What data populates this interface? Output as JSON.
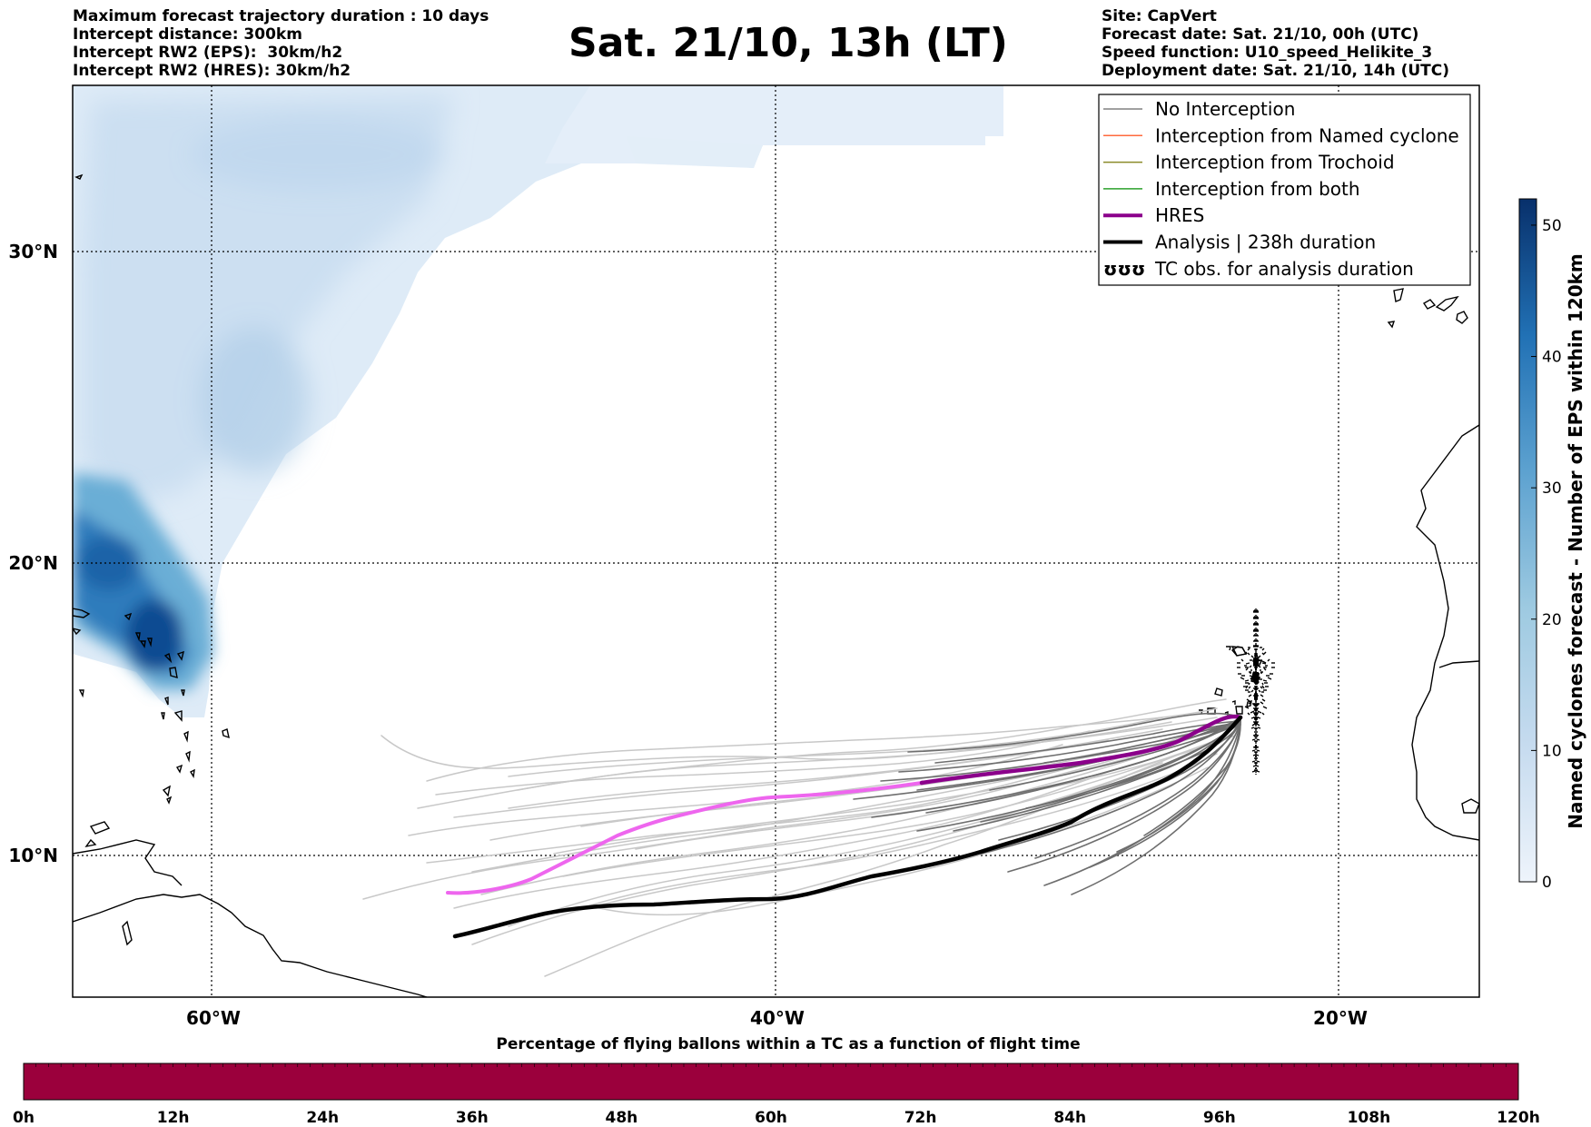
{
  "header": {
    "left": [
      "Maximum forecast trajectory duration : 10 days",
      "Intercept distance: 300km",
      "Intercept RW2 (EPS):  30km/h2",
      "Intercept RW2 (HRES): 30km/h2"
    ],
    "title": "Sat. 21/10, 13h (LT)",
    "right": [
      "Site: CapVert",
      "Forecast date: Sat. 21/10, 00h (UTC)",
      "Speed function: U10_speed_Helikite_3",
      "Deployment date: Sat. 21/10, 14h (UTC)"
    ]
  },
  "map": {
    "lon_labels": [
      "60°W",
      "40°W",
      "20°W"
    ],
    "lat_labels": [
      "30°N",
      "20°N",
      "10°N"
    ]
  },
  "legend": [
    {
      "label": "No Interception",
      "color": "#808080",
      "style": "thin"
    },
    {
      "label": "Interception from Named cyclone",
      "color": "#ff6a3d",
      "style": "thin"
    },
    {
      "label": "Interception from Trochoid",
      "color": "#8b8b2a",
      "style": "thin"
    },
    {
      "label": "Interception from both",
      "color": "#2ca02c",
      "style": "thin"
    },
    {
      "label": "HRES",
      "color": "#8b008b",
      "style": "thick"
    },
    {
      "label": "Analysis | 238h duration",
      "color": "#000000",
      "style": "thick"
    },
    {
      "label": "TC obs. for analysis duration",
      "color": "#000000",
      "style": "symbol",
      "symbol": "ʊʊʊ"
    }
  ],
  "colorbar": {
    "label": "Named cyclones forecast - Number of EPS within 120km",
    "ticks": [
      "0",
      "10",
      "20",
      "30",
      "40",
      "50"
    ],
    "colors": [
      "#e8f0fa",
      "#c6dbef",
      "#9ecae1",
      "#6baed6",
      "#3182bd",
      "#08306b"
    ]
  },
  "flight_time": {
    "title": "Percentage of flying ballons within a TC as a function of flight time",
    "ticks": [
      "0h",
      "12h",
      "24h",
      "36h",
      "48h",
      "60h",
      "72h",
      "84h",
      "96h",
      "108h",
      "120h"
    ],
    "bar_color": "#9b003c"
  }
}
